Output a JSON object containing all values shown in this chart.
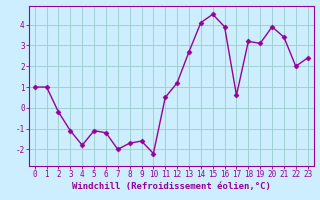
{
  "x": [
    0,
    1,
    2,
    3,
    4,
    5,
    6,
    7,
    8,
    9,
    10,
    11,
    12,
    13,
    14,
    15,
    16,
    17,
    18,
    19,
    20,
    21,
    22,
    23
  ],
  "y": [
    1.0,
    1.0,
    -0.2,
    -1.1,
    -1.8,
    -1.1,
    -1.2,
    -2.0,
    -1.7,
    -1.6,
    -2.2,
    0.5,
    1.2,
    2.7,
    4.1,
    4.5,
    3.9,
    0.6,
    3.2,
    3.1,
    3.9,
    3.4,
    2.0,
    2.4
  ],
  "line_color": "#990099",
  "marker": "D",
  "marker_size": 2.5,
  "bg_color": "#cceeff",
  "grid_color": "#99cccc",
  "xlabel": "Windchill (Refroidissement éolien,°C)",
  "xlim": [
    -0.5,
    23.5
  ],
  "ylim": [
    -2.8,
    4.9
  ],
  "yticks": [
    -2,
    -1,
    0,
    1,
    2,
    3,
    4
  ],
  "xticks": [
    0,
    1,
    2,
    3,
    4,
    5,
    6,
    7,
    8,
    9,
    10,
    11,
    12,
    13,
    14,
    15,
    16,
    17,
    18,
    19,
    20,
    21,
    22,
    23
  ],
  "tick_label_size": 5.5,
  "xlabel_size": 6.5,
  "line_width": 1.0
}
